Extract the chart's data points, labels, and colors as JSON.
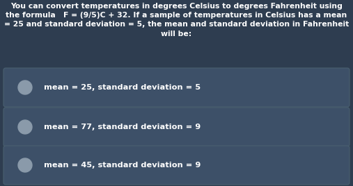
{
  "background_color": "#2e3d50",
  "title_lines": [
    "You can convert temperatures in degrees Celsius to degrees Fahrenheit using",
    "the formula   F = (9/5)C + 32. If a sample of temperatures in Celsius has a mean",
    "= 25 and standard deviation = 5, the mean and standard deviation in Fahrenheit",
    "will be:"
  ],
  "options": [
    "mean = 25, standard deviation = 5",
    "mean = 77, standard deviation = 9",
    "mean = 45, standard deviation = 9"
  ],
  "option_bg_color": "#3d5068",
  "option_border_color": "#4a6070",
  "text_color": "#ffffff",
  "title_fontsize": 7.8,
  "option_fontsize": 8.2,
  "circle_color": "#8a9aaa",
  "figsize": [
    5.07,
    2.68
  ],
  "dpi": 100
}
